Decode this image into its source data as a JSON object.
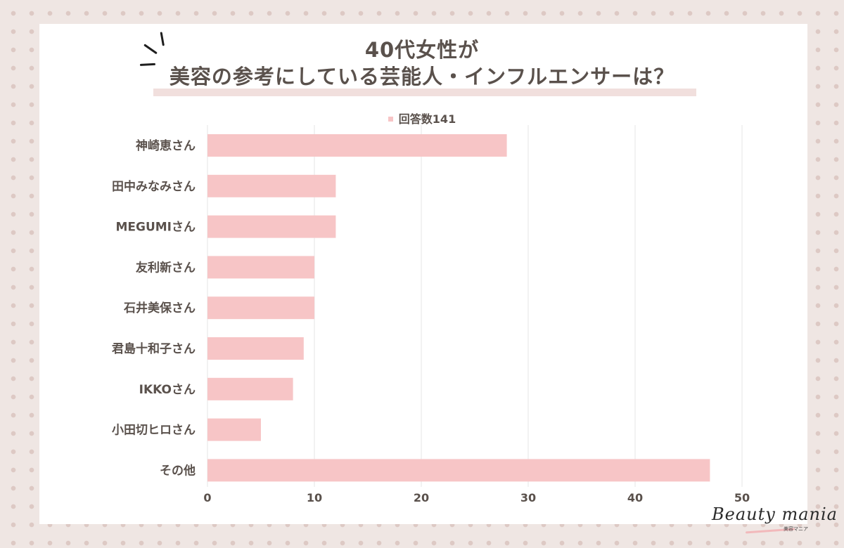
{
  "title": {
    "line1": "40代女性が",
    "line2": "美容の参考にしている芸能人・インフルエンサーは？"
  },
  "legend": {
    "label": "回答数141"
  },
  "colors": {
    "bar": "#f7c5c6",
    "text": "#5a514c",
    "grid": "#e6e6e6",
    "background": "#efe6e3",
    "dots": "#ddc9c4"
  },
  "logo": {
    "main": "Beauty mania",
    "sub": "美容マニア"
  },
  "chart_data": {
    "type": "bar",
    "orientation": "horizontal",
    "title": "40代女性が美容の参考にしている芸能人・インフルエンサーは？",
    "categories": [
      "神崎恵さん",
      "田中みなみさん",
      "MEGUMIさん",
      "友利新さん",
      "石井美保さん",
      "君島十和子さん",
      "IKKOさん",
      "小田切ヒロさん",
      "その他"
    ],
    "series": [
      {
        "name": "回答数141",
        "values": [
          28,
          12,
          12,
          10,
          10,
          9,
          8,
          5,
          47
        ]
      }
    ],
    "xlim": [
      0,
      50
    ],
    "xticks": [
      0,
      10,
      20,
      30,
      40,
      50
    ],
    "grid": true,
    "legend_position": "top"
  }
}
